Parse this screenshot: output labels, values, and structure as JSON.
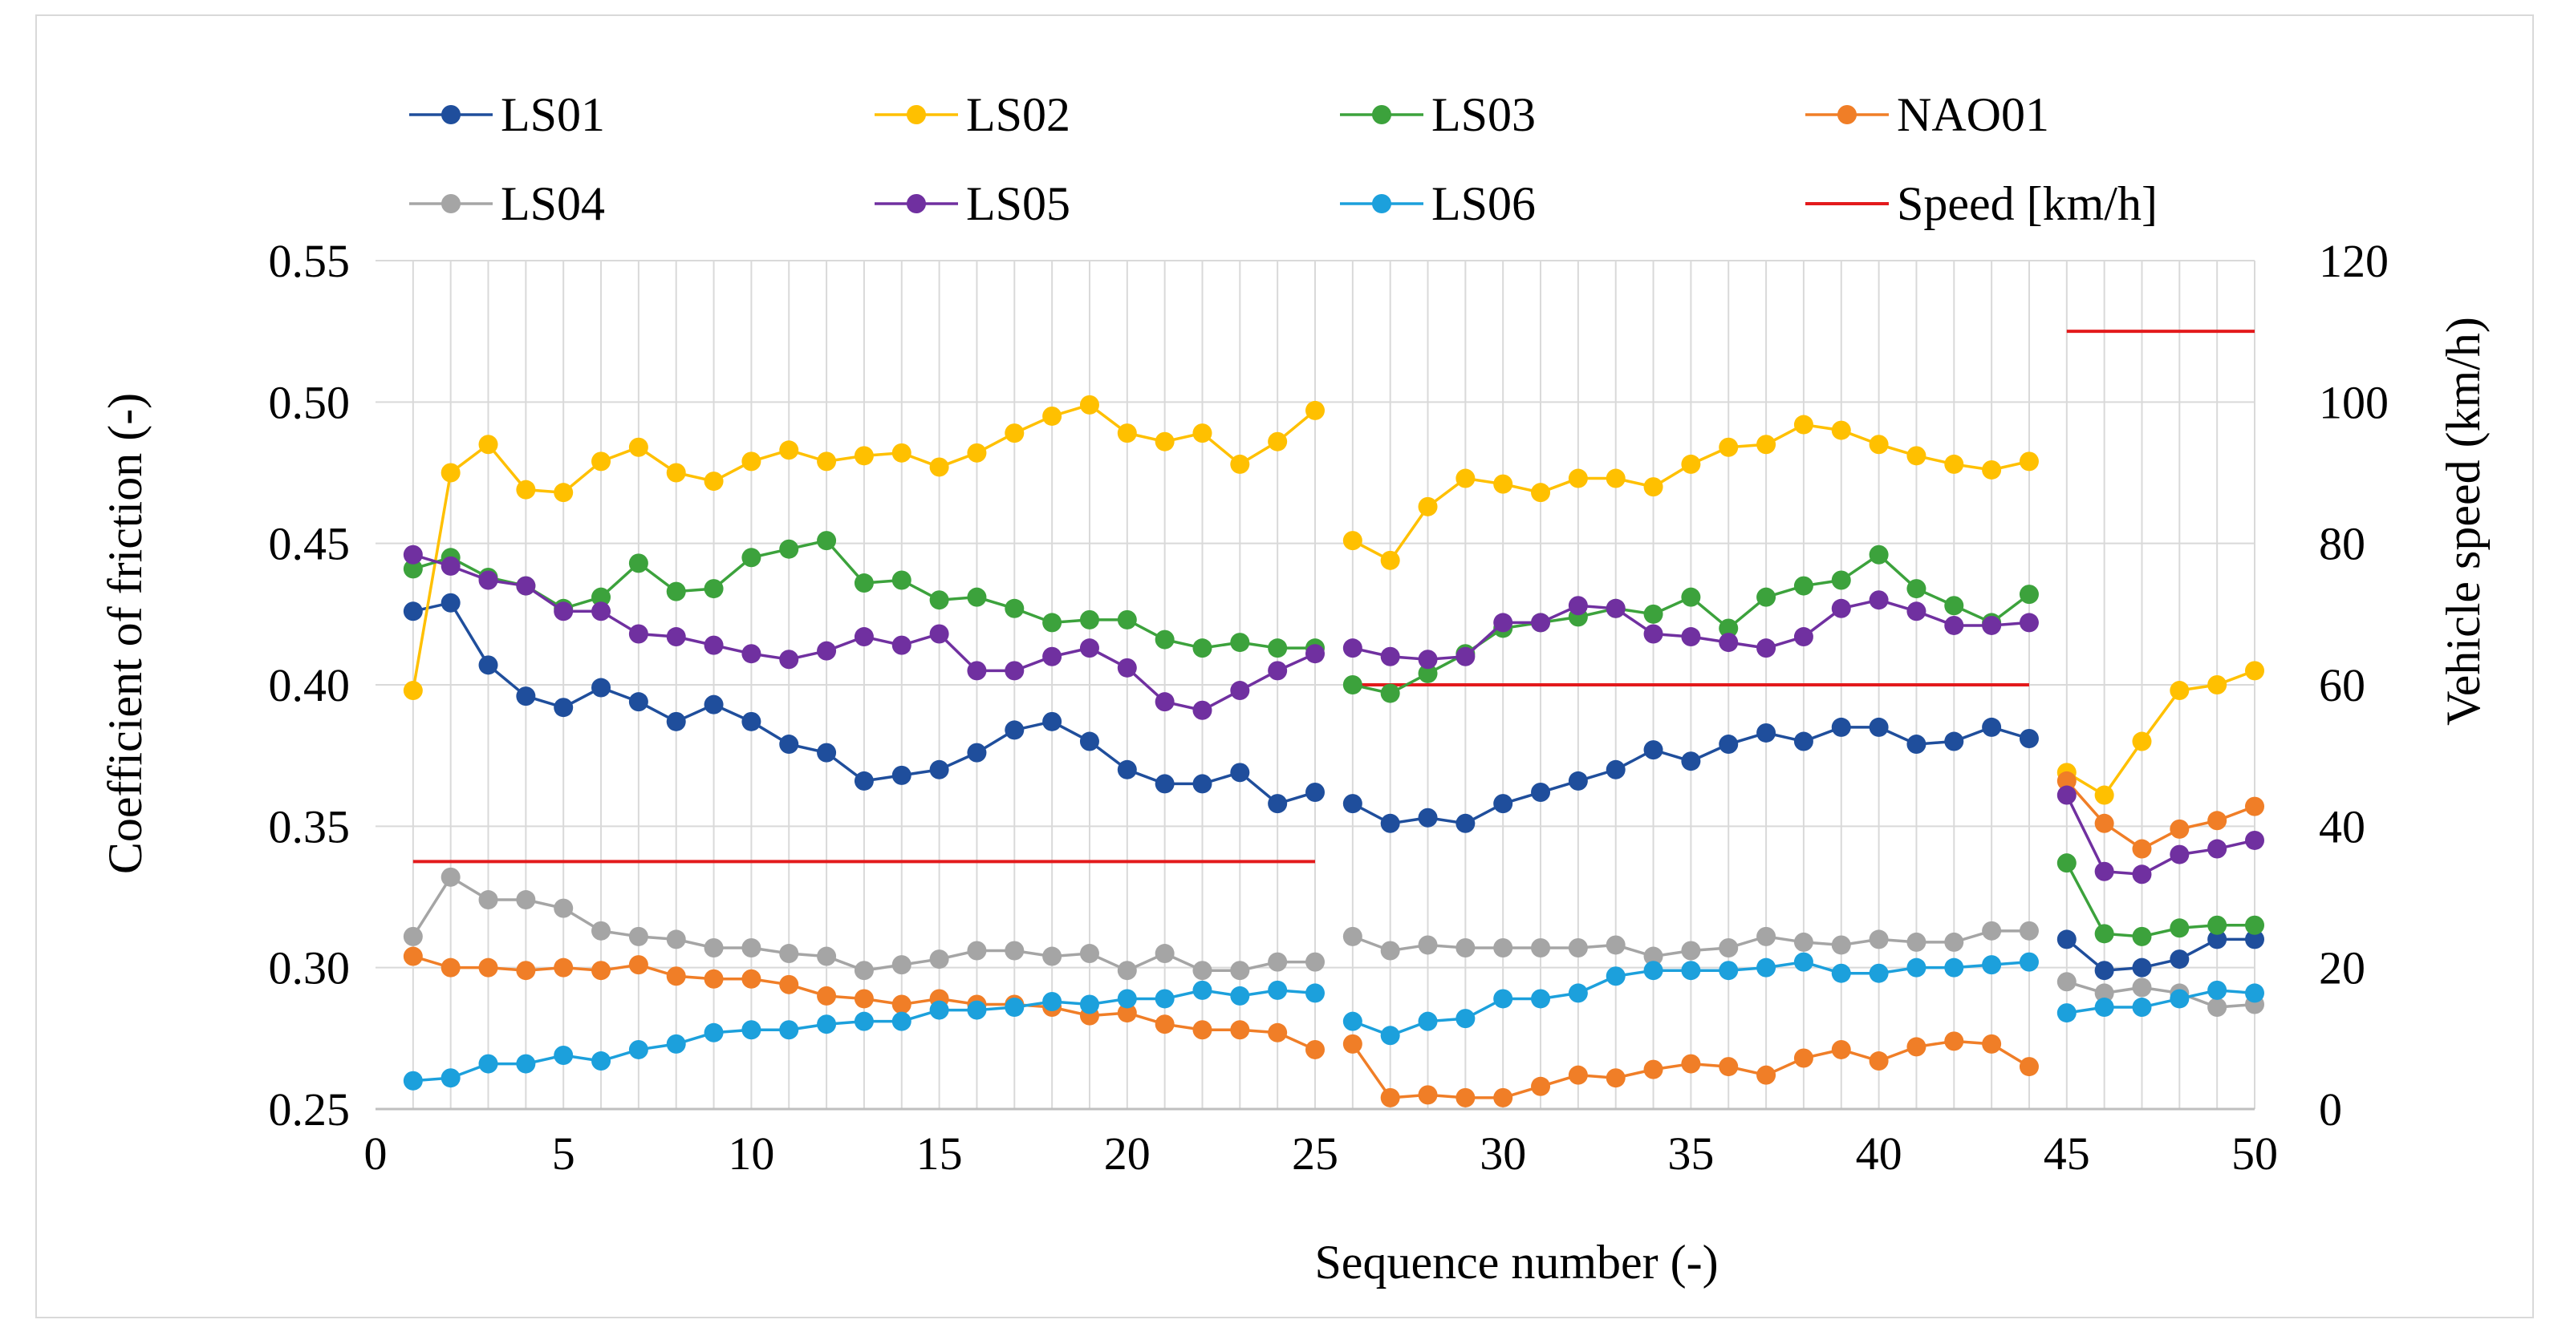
{
  "chart_data": {
    "type": "line",
    "title": "",
    "xlabel": "Sequence number (-)",
    "ylabel": "Coefficient of friction (-)",
    "y2label": "Vehicle speed (km/h)",
    "xlim": [
      0,
      50
    ],
    "ylim": [
      0.25,
      0.55
    ],
    "y2lim": [
      0,
      120
    ],
    "xticks": [
      0,
      5,
      10,
      15,
      20,
      25,
      30,
      35,
      40,
      45,
      50
    ],
    "yticks": [
      "0.25",
      "0.30",
      "0.35",
      "0.40",
      "0.45",
      "0.50",
      "0.55"
    ],
    "y2ticks": [
      "0",
      "20",
      "40",
      "60",
      "80",
      "100",
      "120"
    ],
    "grid": true,
    "legend_position": "top",
    "series": [
      {
        "name": "LS01",
        "color": "#1f4e9c",
        "segments": [
          {
            "x": [
              1,
              2,
              3,
              4,
              5,
              6,
              7,
              8,
              9,
              10,
              11,
              12,
              13,
              14,
              15,
              16,
              17,
              18,
              19,
              20,
              21,
              22,
              23,
              24,
              25
            ],
            "y": [
              0.426,
              0.429,
              0.407,
              0.396,
              0.392,
              0.399,
              0.394,
              0.387,
              0.393,
              0.387,
              0.379,
              0.376,
              0.366,
              0.368,
              0.37,
              0.376,
              0.384,
              0.387,
              0.38,
              0.37,
              0.365,
              0.365,
              0.369,
              0.358,
              0.362
            ]
          },
          {
            "x": [
              26,
              27,
              28,
              29,
              30,
              31,
              32,
              33,
              34,
              35,
              36,
              37,
              38,
              39,
              40,
              41,
              42,
              43,
              44
            ],
            "y": [
              0.358,
              0.351,
              0.353,
              0.351,
              0.358,
              0.362,
              0.366,
              0.37,
              0.377,
              0.373,
              0.379,
              0.383,
              0.38,
              0.385,
              0.385,
              0.379,
              0.38,
              0.385,
              0.381
            ]
          },
          {
            "x": [
              45,
              46,
              47,
              48,
              49,
              50
            ],
            "y": [
              0.31,
              0.299,
              0.3,
              0.303,
              0.31,
              0.31
            ]
          }
        ]
      },
      {
        "name": "LS02",
        "color": "#ffc000",
        "segments": [
          {
            "x": [
              1,
              2,
              3,
              4,
              5,
              6,
              7,
              8,
              9,
              10,
              11,
              12,
              13,
              14,
              15,
              16,
              17,
              18,
              19,
              20,
              21,
              22,
              23,
              24,
              25
            ],
            "y": [
              0.398,
              0.475,
              0.485,
              0.469,
              0.468,
              0.479,
              0.484,
              0.475,
              0.472,
              0.479,
              0.483,
              0.479,
              0.481,
              0.482,
              0.477,
              0.482,
              0.489,
              0.495,
              0.499,
              0.489,
              0.486,
              0.489,
              0.478,
              0.486,
              0.497
            ]
          },
          {
            "x": [
              26,
              27,
              28,
              29,
              30,
              31,
              32,
              33,
              34,
              35,
              36,
              37,
              38,
              39,
              40,
              41,
              42,
              43,
              44
            ],
            "y": [
              0.451,
              0.444,
              0.463,
              0.473,
              0.471,
              0.468,
              0.473,
              0.473,
              0.47,
              0.478,
              0.484,
              0.485,
              0.492,
              0.49,
              0.485,
              0.481,
              0.478,
              0.476,
              0.479
            ]
          },
          {
            "x": [
              45,
              46,
              47,
              48,
              49,
              50
            ],
            "y": [
              0.369,
              0.361,
              0.38,
              0.398,
              0.4,
              0.405
            ]
          }
        ]
      },
      {
        "name": "LS03",
        "color": "#3ca23c",
        "segments": [
          {
            "x": [
              1,
              2,
              3,
              4,
              5,
              6,
              7,
              8,
              9,
              10,
              11,
              12,
              13,
              14,
              15,
              16,
              17,
              18,
              19,
              20,
              21,
              22,
              23,
              24,
              25
            ],
            "y": [
              0.441,
              0.445,
              0.438,
              0.435,
              0.427,
              0.431,
              0.443,
              0.433,
              0.434,
              0.445,
              0.448,
              0.451,
              0.436,
              0.437,
              0.43,
              0.431,
              0.427,
              0.422,
              0.423,
              0.423,
              0.416,
              0.413,
              0.415,
              0.413,
              0.413
            ]
          },
          {
            "x": [
              26,
              27,
              28,
              29,
              30,
              31,
              32,
              33,
              34,
              35,
              36,
              37,
              38,
              39,
              40,
              41,
              42,
              43,
              44
            ],
            "y": [
              0.4,
              0.397,
              0.404,
              0.411,
              0.42,
              0.422,
              0.424,
              0.427,
              0.425,
              0.431,
              0.42,
              0.431,
              0.435,
              0.437,
              0.446,
              0.434,
              0.428,
              0.422,
              0.432
            ]
          },
          {
            "x": [
              45,
              46,
              47,
              48,
              49,
              50
            ],
            "y": [
              0.337,
              0.312,
              0.311,
              0.314,
              0.315,
              0.315
            ]
          }
        ]
      },
      {
        "name": "NAO01",
        "color": "#f07e27",
        "segments": [
          {
            "x": [
              1,
              2,
              3,
              4,
              5,
              6,
              7,
              8,
              9,
              10,
              11,
              12,
              13,
              14,
              15,
              16,
              17,
              18,
              19,
              20,
              21,
              22,
              23,
              24,
              25
            ],
            "y": [
              0.304,
              0.3,
              0.3,
              0.299,
              0.3,
              0.299,
              0.301,
              0.297,
              0.296,
              0.296,
              0.294,
              0.29,
              0.289,
              0.287,
              0.289,
              0.287,
              0.287,
              0.286,
              0.283,
              0.284,
              0.28,
              0.278,
              0.278,
              0.277,
              0.271
            ]
          },
          {
            "x": [
              26,
              27,
              28,
              29,
              30,
              31,
              32,
              33,
              34,
              35,
              36,
              37,
              38,
              39,
              40,
              41,
              42,
              43,
              44
            ],
            "y": [
              0.273,
              0.254,
              0.255,
              0.254,
              0.254,
              0.258,
              0.262,
              0.261,
              0.264,
              0.266,
              0.265,
              0.262,
              0.268,
              0.271,
              0.267,
              0.272,
              0.274,
              0.273,
              0.265
            ]
          },
          {
            "x": [
              45,
              46,
              47,
              48,
              49,
              50
            ],
            "y": [
              0.366,
              0.351,
              0.342,
              0.349,
              0.352,
              0.357
            ]
          }
        ]
      },
      {
        "name": "LS04",
        "color": "#a5a5a5",
        "segments": [
          {
            "x": [
              1,
              2,
              3,
              4,
              5,
              6,
              7,
              8,
              9,
              10,
              11,
              12,
              13,
              14,
              15,
              16,
              17,
              18,
              19,
              20,
              21,
              22,
              23,
              24,
              25
            ],
            "y": [
              0.311,
              0.332,
              0.324,
              0.324,
              0.321,
              0.313,
              0.311,
              0.31,
              0.307,
              0.307,
              0.305,
              0.304,
              0.299,
              0.301,
              0.303,
              0.306,
              0.306,
              0.304,
              0.305,
              0.299,
              0.305,
              0.299,
              0.299,
              0.302,
              0.302
            ]
          },
          {
            "x": [
              26,
              27,
              28,
              29,
              30,
              31,
              32,
              33,
              34,
              35,
              36,
              37,
              38,
              39,
              40,
              41,
              42,
              43,
              44
            ],
            "y": [
              0.311,
              0.306,
              0.308,
              0.307,
              0.307,
              0.307,
              0.307,
              0.308,
              0.304,
              0.306,
              0.307,
              0.311,
              0.309,
              0.308,
              0.31,
              0.309,
              0.309,
              0.313,
              0.313
            ]
          },
          {
            "x": [
              45,
              46,
              47,
              48,
              49,
              50
            ],
            "y": [
              0.295,
              0.291,
              0.293,
              0.291,
              0.286,
              0.287
            ]
          }
        ]
      },
      {
        "name": "LS05",
        "color": "#7030a0",
        "segments": [
          {
            "x": [
              1,
              2,
              3,
              4,
              5,
              6,
              7,
              8,
              9,
              10,
              11,
              12,
              13,
              14,
              15,
              16,
              17,
              18,
              19,
              20,
              21,
              22,
              23,
              24,
              25
            ],
            "y": [
              0.446,
              0.442,
              0.437,
              0.435,
              0.426,
              0.426,
              0.418,
              0.417,
              0.414,
              0.411,
              0.409,
              0.412,
              0.417,
              0.414,
              0.418,
              0.405,
              0.405,
              0.41,
              0.413,
              0.406,
              0.394,
              0.391,
              0.398,
              0.405,
              0.411
            ]
          },
          {
            "x": [
              26,
              27,
              28,
              29,
              30,
              31,
              32,
              33,
              34,
              35,
              36,
              37,
              38,
              39,
              40,
              41,
              42,
              43,
              44
            ],
            "y": [
              0.413,
              0.41,
              0.409,
              0.41,
              0.422,
              0.422,
              0.428,
              0.427,
              0.418,
              0.417,
              0.415,
              0.413,
              0.417,
              0.427,
              0.43,
              0.426,
              0.421,
              0.421,
              0.422
            ]
          },
          {
            "x": [
              45,
              46,
              47,
              48,
              49,
              50
            ],
            "y": [
              0.361,
              0.334,
              0.333,
              0.34,
              0.342,
              0.345
            ]
          }
        ]
      },
      {
        "name": "LS06",
        "color": "#1ca0dc",
        "segments": [
          {
            "x": [
              1,
              2,
              3,
              4,
              5,
              6,
              7,
              8,
              9,
              10,
              11,
              12,
              13,
              14,
              15,
              16,
              17,
              18,
              19,
              20,
              21,
              22,
              23,
              24,
              25
            ],
            "y": [
              0.26,
              0.261,
              0.266,
              0.266,
              0.269,
              0.267,
              0.271,
              0.273,
              0.277,
              0.278,
              0.278,
              0.28,
              0.281,
              0.281,
              0.285,
              0.285,
              0.286,
              0.288,
              0.287,
              0.289,
              0.289,
              0.292,
              0.29,
              0.292,
              0.291
            ]
          },
          {
            "x": [
              26,
              27,
              28,
              29,
              30,
              31,
              32,
              33,
              34,
              35,
              36,
              37,
              38,
              39,
              40,
              41,
              42,
              43,
              44
            ],
            "y": [
              0.281,
              0.276,
              0.281,
              0.282,
              0.289,
              0.289,
              0.291,
              0.297,
              0.299,
              0.299,
              0.299,
              0.3,
              0.302,
              0.298,
              0.298,
              0.3,
              0.3,
              0.301,
              0.302
            ]
          },
          {
            "x": [
              45,
              46,
              47,
              48,
              49,
              50
            ],
            "y": [
              0.284,
              0.286,
              0.286,
              0.289,
              0.292,
              0.291
            ]
          }
        ]
      }
    ],
    "speed_series": {
      "name": "Speed [km/h]",
      "color": "#e31a1c",
      "axis": "y2",
      "segments": [
        {
          "x": [
            1,
            25
          ],
          "y": [
            35,
            35
          ]
        },
        {
          "x": [
            26,
            44
          ],
          "y": [
            60,
            60
          ]
        },
        {
          "x": [
            45,
            50
          ],
          "y": [
            110,
            110
          ]
        }
      ]
    },
    "legend_order": [
      "LS01",
      "LS02",
      "LS03",
      "NAO01",
      "LS04",
      "LS05",
      "LS06",
      "Speed [km/h]"
    ]
  }
}
